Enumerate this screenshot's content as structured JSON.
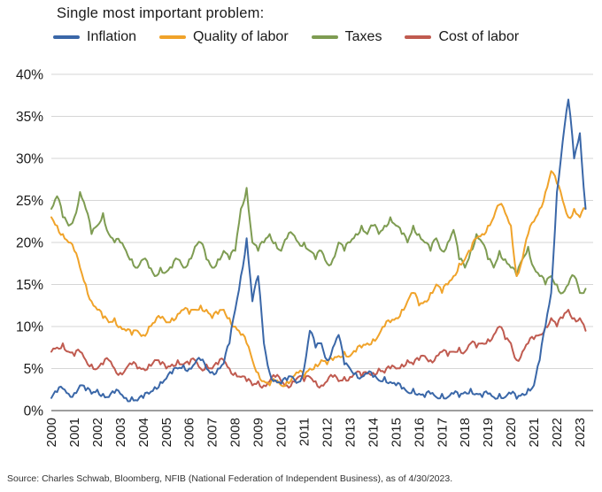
{
  "title": "Single most important problem:",
  "source": "Source: Charles Schwab, Bloomberg, NFIB (National Federation of Independent Business), as of 4/30/2023.",
  "chart_data": {
    "type": "line",
    "title": "Single most important problem:",
    "xlabel": "",
    "ylabel": "",
    "ylim": [
      0,
      40
    ],
    "grid": "horizontal",
    "legend_position": "top",
    "y_tick_labels": [
      "0%",
      "5%",
      "10%",
      "15%",
      "20%",
      "25%",
      "30%",
      "35%",
      "40%"
    ],
    "x_tick_labels": [
      "2000",
      "2001",
      "2002",
      "2003",
      "2004",
      "2005",
      "2006",
      "2007",
      "2008",
      "2009",
      "2010",
      "2011",
      "2012",
      "2013",
      "2014",
      "2015",
      "2016",
      "2017",
      "2018",
      "2019",
      "2020",
      "2021",
      "2022",
      "2023"
    ],
    "x_start_year": 2000,
    "x_step_years": 0.25,
    "x_unit": "quarterly estimates, % of respondents",
    "series": [
      {
        "name": "Inflation",
        "color": "#3a67a8",
        "values": [
          1.5,
          2.2,
          2.6,
          2.0,
          2.1,
          3.0,
          2.4,
          2.0,
          2.5,
          2.0,
          1.6,
          2.1,
          2.0,
          1.5,
          1.6,
          1.2,
          1.5,
          2.0,
          2.8,
          3.4,
          3.8,
          4.4,
          5.0,
          5.4,
          5.0,
          5.6,
          6.0,
          5.0,
          4.6,
          5.0,
          5.6,
          8.0,
          12.0,
          16.0,
          20.5,
          13.0,
          16.0,
          8.0,
          4.5,
          3.6,
          3.2,
          3.6,
          4.0,
          3.4,
          5.0,
          9.5,
          7.5,
          8.0,
          6.0,
          7.5,
          9.0,
          5.5,
          5.0,
          4.5,
          4.0,
          4.4,
          4.0,
          3.6,
          4.0,
          3.4,
          3.0,
          2.6,
          2.2,
          2.6,
          2.0,
          1.6,
          2.0,
          1.6,
          2.0,
          1.6,
          2.0,
          1.6,
          2.2,
          2.6,
          2.0,
          1.6,
          2.0,
          1.6,
          2.0,
          1.6,
          2.0,
          1.4,
          2.0,
          2.6,
          3.0,
          6.0,
          10.0,
          14.0,
          26.0,
          32.0,
          37.0,
          30.0,
          33.0,
          24.0
        ]
      },
      {
        "name": "Quality of labor",
        "color": "#f0a32a",
        "values": [
          23.0,
          22.0,
          21.0,
          20.0,
          19.0,
          17.0,
          15.0,
          13.0,
          12.0,
          11.0,
          10.5,
          11.0,
          10.0,
          9.5,
          9.0,
          9.5,
          9.0,
          10.0,
          10.5,
          11.0,
          10.5,
          11.0,
          11.5,
          12.0,
          11.5,
          12.0,
          12.5,
          12.0,
          11.0,
          11.5,
          12.0,
          11.0,
          10.0,
          9.0,
          8.0,
          6.0,
          4.5,
          3.5,
          3.0,
          3.5,
          3.0,
          3.5,
          4.0,
          4.5,
          4.0,
          5.0,
          5.5,
          6.0,
          5.5,
          6.0,
          6.5,
          7.0,
          6.5,
          7.0,
          7.5,
          8.0,
          8.5,
          9.0,
          10.0,
          10.5,
          11.0,
          12.0,
          13.0,
          14.0,
          12.5,
          13.0,
          14.0,
          15.0,
          14.0,
          15.0,
          16.0,
          17.5,
          18.0,
          19.0,
          20.5,
          21.0,
          22.0,
          23.0,
          24.5,
          23.5,
          22.0,
          16.0,
          18.0,
          21.0,
          22.5,
          24.0,
          26.0,
          28.5,
          27.0,
          25.0,
          23.0,
          24.0,
          23.0,
          24.0
        ]
      },
      {
        "name": "Taxes",
        "color": "#7e9c52",
        "values": [
          24.0,
          25.5,
          23.0,
          22.0,
          23.0,
          26.0,
          24.0,
          21.0,
          22.0,
          23.5,
          21.0,
          20.0,
          20.0,
          19.0,
          18.0,
          17.0,
          18.0,
          17.0,
          16.0,
          17.0,
          16.5,
          17.0,
          18.0,
          17.0,
          18.0,
          19.5,
          20.0,
          18.0,
          17.0,
          18.0,
          19.0,
          18.0,
          19.0,
          24.0,
          26.5,
          20.0,
          19.0,
          20.0,
          21.0,
          20.0,
          19.0,
          20.5,
          21.0,
          20.0,
          20.0,
          19.0,
          18.0,
          19.0,
          17.5,
          18.0,
          20.0,
          19.0,
          20.0,
          21.0,
          22.0,
          21.0,
          22.0,
          21.0,
          22.0,
          23.0,
          22.0,
          21.0,
          20.0,
          22.0,
          21.0,
          20.0,
          19.0,
          20.5,
          19.0,
          20.0,
          21.5,
          18.0,
          17.0,
          19.0,
          21.0,
          20.0,
          18.0,
          17.0,
          19.0,
          18.0,
          17.0,
          16.0,
          18.0,
          19.5,
          17.0,
          16.0,
          15.0,
          16.0,
          15.0,
          14.0,
          15.0,
          16.0,
          14.0,
          14.5
        ]
      },
      {
        "name": "Cost of labor",
        "color": "#c05b50",
        "values": [
          7.0,
          7.5,
          8.0,
          7.0,
          6.5,
          7.0,
          6.0,
          5.5,
          5.0,
          5.5,
          6.0,
          5.0,
          4.5,
          5.0,
          5.5,
          5.0,
          5.0,
          5.5,
          6.0,
          5.5,
          5.0,
          5.5,
          6.0,
          5.5,
          5.5,
          6.0,
          5.0,
          5.5,
          5.0,
          5.5,
          6.0,
          5.0,
          4.5,
          4.0,
          3.5,
          3.0,
          3.5,
          3.0,
          3.5,
          4.0,
          3.5,
          3.0,
          3.5,
          4.0,
          3.5,
          4.0,
          3.5,
          3.0,
          3.5,
          4.0,
          3.5,
          4.0,
          4.0,
          4.5,
          4.0,
          4.5,
          4.5,
          5.0,
          4.5,
          5.0,
          5.0,
          5.5,
          6.0,
          5.5,
          6.0,
          6.5,
          6.0,
          6.5,
          7.0,
          6.5,
          7.0,
          7.5,
          7.0,
          8.0,
          7.5,
          8.0,
          8.5,
          9.0,
          10.0,
          8.5,
          8.0,
          6.0,
          7.0,
          8.0,
          8.5,
          9.0,
          10.0,
          11.0,
          10.0,
          11.0,
          12.0,
          11.0,
          11.0,
          9.5
        ]
      }
    ],
    "style": {
      "gridline_color": "#d6d6d6",
      "axis_line_color": "#7f7f7f",
      "tick_label_color": "#1a1a1a"
    }
  }
}
